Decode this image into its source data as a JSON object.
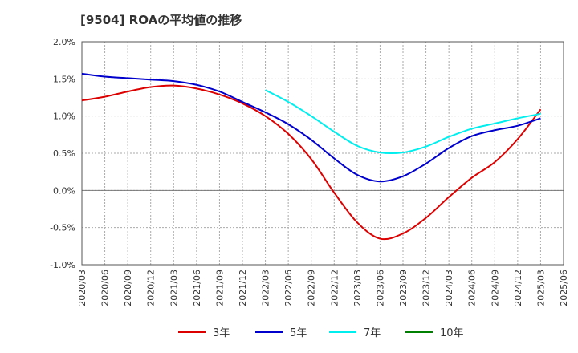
{
  "title": "[9504]  ROAの平均値の推移",
  "chart_data": {
    "type": "line",
    "title": "[9504]  ROAの平均値の推移",
    "xlabel": "",
    "ylabel": "",
    "x_ticks": [
      "2020/03",
      "2020/06",
      "2020/09",
      "2020/12",
      "2021/03",
      "2021/06",
      "2021/09",
      "2021/12",
      "2022/03",
      "2022/06",
      "2022/09",
      "2022/12",
      "2023/03",
      "2023/06",
      "2023/09",
      "2023/12",
      "2024/03",
      "2024/06",
      "2024/09",
      "2024/12",
      "2025/03",
      "2025/06"
    ],
    "y_ticks": [
      "2.0%",
      "1.5%",
      "1.0%",
      "0.5%",
      "0.0%",
      "-0.5%",
      "-1.0%"
    ],
    "y_tick_values": [
      2.0,
      1.5,
      1.0,
      0.5,
      0.0,
      -0.5,
      -1.0
    ],
    "ylim": [
      -1.0,
      2.0
    ],
    "unit": "%",
    "grid": true,
    "legend_position": "bottom",
    "series": [
      {
        "name": "3年",
        "color": "#dd0000",
        "x": [
          "2020/03",
          "2020/06",
          "2020/09",
          "2020/12",
          "2021/03",
          "2021/06",
          "2021/09",
          "2021/12",
          "2022/03",
          "2022/06",
          "2022/09",
          "2022/12",
          "2023/03",
          "2023/06",
          "2023/09",
          "2023/12",
          "2024/03",
          "2024/06",
          "2024/09",
          "2024/12",
          "2025/03"
        ],
        "values": [
          1.21,
          1.26,
          1.33,
          1.39,
          1.41,
          1.37,
          1.29,
          1.17,
          1.0,
          0.76,
          0.42,
          -0.03,
          -0.43,
          -0.65,
          -0.58,
          -0.37,
          -0.09,
          0.17,
          0.38,
          0.69,
          1.09
        ]
      },
      {
        "name": "5年",
        "color": "#0000cc",
        "x": [
          "2020/03",
          "2020/06",
          "2020/09",
          "2020/12",
          "2021/03",
          "2021/06",
          "2021/09",
          "2021/12",
          "2022/03",
          "2022/06",
          "2022/09",
          "2022/12",
          "2023/03",
          "2023/06",
          "2023/09",
          "2023/12",
          "2024/03",
          "2024/06",
          "2024/09",
          "2024/12",
          "2025/03"
        ],
        "values": [
          1.57,
          1.53,
          1.51,
          1.49,
          1.47,
          1.42,
          1.33,
          1.19,
          1.05,
          0.89,
          0.68,
          0.43,
          0.21,
          0.12,
          0.19,
          0.36,
          0.57,
          0.73,
          0.81,
          0.87,
          0.97
        ]
      },
      {
        "name": "7年",
        "color": "#00eeee",
        "x": [
          "2022/03",
          "2022/06",
          "2022/09",
          "2022/12",
          "2023/03",
          "2023/06",
          "2023/09",
          "2023/12",
          "2024/03",
          "2024/06",
          "2024/09",
          "2024/12",
          "2025/03"
        ],
        "values": [
          1.35,
          1.19,
          1.0,
          0.79,
          0.6,
          0.51,
          0.51,
          0.59,
          0.72,
          0.83,
          0.9,
          0.97,
          1.03
        ]
      },
      {
        "name": "10年",
        "color": "#008000",
        "x": [],
        "values": []
      }
    ]
  }
}
